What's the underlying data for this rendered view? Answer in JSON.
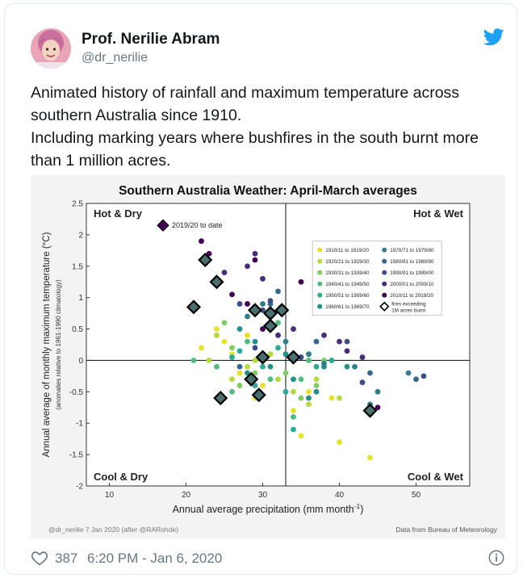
{
  "tweet": {
    "author_name": "Prof. Nerilie Abram",
    "author_handle": "@dr_nerilie",
    "text_lines": [
      "Animated history of rainfall and maximum temperature across",
      "southern Australia since 1910.",
      "Including marking years where bushfires in the south burnt more",
      "than 1 million acres."
    ],
    "like_count": "387",
    "timestamp": "6:20 PM - Jan 6, 2020",
    "icons": {
      "avatar": "avatar",
      "bird": "twitter-bird-icon",
      "heart": "heart-icon",
      "info": "info-icon"
    },
    "colors": {
      "accent": "#1da1f2",
      "secondary_text": "#657786"
    }
  },
  "chart_data": {
    "type": "scatter",
    "title": "Southern Australia Weather: April-March averages",
    "xlabel": "Annual average precipitation (mm month",
    "xlabel_sup": "-1",
    "xlabel_close": ")",
    "ylabel": "Annual average of monthly maximum temperature (°C)",
    "ylabel_sub": "(anomalies relative to 1961-1990 climatology)",
    "xlim": [
      7,
      57
    ],
    "ylim": [
      -2,
      2.5
    ],
    "x_ticks": [
      10,
      20,
      30,
      40,
      50
    ],
    "y_ticks": [
      -2,
      -1.5,
      -1,
      -0.5,
      0,
      0.5,
      1,
      1.5,
      2,
      2.5
    ],
    "y_tick_labels": [
      "-2",
      "-1.5",
      "-1",
      "-0.5",
      "0",
      "0.5",
      "1",
      "1.5",
      "2",
      "2.5"
    ],
    "divider_x": 33,
    "divider_y": 0,
    "quadrant_labels": {
      "top_left": "Hot & Dry",
      "top_right": "Hot & Wet",
      "bottom_left": "Cool & Dry",
      "bottom_right": "Cool & Wet"
    },
    "annotation": "2019/20 to date",
    "legend": {
      "placement": "top-right",
      "entries": [
        {
          "label": "1910/11 to 1919/20",
          "color": "#e6e22a"
        },
        {
          "label": "1920/21 to 1929/30",
          "color": "#b2dc3c"
        },
        {
          "label": "1930/31 to 1939/40",
          "color": "#7fce5f"
        },
        {
          "label": "1940/41 to 1949/50",
          "color": "#4ebe7e"
        },
        {
          "label": "1950/51 to 1959/60",
          "color": "#2aa996"
        },
        {
          "label": "1960/61 to 1969/70",
          "color": "#219189"
        },
        {
          "label": "1970/71 to 1979/80",
          "color": "#2d7f8e"
        },
        {
          "label": "1980/81 to 1989/90",
          "color": "#35668c"
        },
        {
          "label": "1990/91 to 1999/00",
          "color": "#3e4a89"
        },
        {
          "label": "2000/01 to 2009/10",
          "color": "#472d7b"
        },
        {
          "label": "2010/11 to 2019/20",
          "color": "#440154"
        },
        {
          "label": "fires exceeding 1M acres burnt",
          "marker": "diamond"
        }
      ]
    },
    "series": [
      {
        "decade": 0,
        "points": [
          [
            22,
            0.2
          ],
          [
            24,
            0.5
          ],
          [
            25,
            0.3
          ],
          [
            26,
            0.1
          ],
          [
            27,
            -0.2
          ],
          [
            28,
            0.4
          ],
          [
            30,
            -0.4
          ],
          [
            31,
            -0.1
          ],
          [
            34,
            -0.8
          ],
          [
            35,
            -1.2
          ],
          [
            36,
            -0.5
          ],
          [
            39,
            -0.6
          ],
          [
            40,
            -1.3
          ],
          [
            44,
            -1.55
          ],
          [
            29,
            -0.6
          ]
        ]
      },
      {
        "decade": 1,
        "points": [
          [
            23,
            0.0
          ],
          [
            24,
            0.4
          ],
          [
            26,
            -0.3
          ],
          [
            28,
            -0.1
          ],
          [
            29,
            0.0
          ],
          [
            31,
            0.1
          ],
          [
            32,
            -0.3
          ],
          [
            34,
            -0.5
          ],
          [
            36,
            -0.7
          ],
          [
            37,
            -0.3
          ],
          [
            40,
            -0.6
          ]
        ]
      },
      {
        "decade": 2,
        "points": [
          [
            25,
            0.6
          ],
          [
            26,
            0.2
          ],
          [
            27,
            -0.4
          ],
          [
            29,
            -0.2
          ],
          [
            31,
            0.5
          ],
          [
            33,
            -0.2
          ],
          [
            34,
            0.1
          ],
          [
            35,
            -0.6
          ],
          [
            37,
            -0.4
          ],
          [
            38,
            0.0
          ]
        ]
      },
      {
        "decade": 3,
        "points": [
          [
            21,
            0.0
          ],
          [
            24,
            -0.1
          ],
          [
            26,
            -0.5
          ],
          [
            28,
            0.3
          ],
          [
            30,
            0.1
          ],
          [
            31,
            -0.3
          ],
          [
            32,
            0.6
          ],
          [
            34,
            -0.9
          ],
          [
            35,
            -0.3
          ],
          [
            36,
            0.0
          ]
        ]
      },
      {
        "decade": 4,
        "points": [
          [
            26,
            0.05
          ],
          [
            27,
            0.15
          ],
          [
            29,
            -0.4
          ],
          [
            30,
            -0.1
          ],
          [
            32,
            0.2
          ],
          [
            33,
            -0.5
          ],
          [
            34,
            -1.1
          ],
          [
            35,
            0.05
          ],
          [
            37,
            -0.1
          ],
          [
            39,
            0.0
          ]
        ]
      },
      {
        "decade": 5,
        "points": [
          [
            27,
            0.5
          ],
          [
            28,
            -0.2
          ],
          [
            29,
            0.3
          ],
          [
            31,
            -0.1
          ],
          [
            33,
            0.1
          ],
          [
            34,
            -0.3
          ],
          [
            36,
            -0.6
          ],
          [
            37,
            -0.5
          ],
          [
            38,
            -0.1
          ],
          [
            41,
            -0.1
          ]
        ]
      },
      {
        "decade": 6,
        "points": [
          [
            28,
            0.7
          ],
          [
            30,
            0.9
          ],
          [
            31,
            0.6
          ],
          [
            33,
            0.3
          ],
          [
            36,
            0.1
          ],
          [
            38,
            -0.05
          ],
          [
            42,
            -0.1
          ],
          [
            44,
            -0.7
          ],
          [
            45,
            -0.5
          ],
          [
            49,
            -0.2
          ]
        ]
      },
      {
        "decade": 7,
        "points": [
          [
            27,
            -0.1
          ],
          [
            30,
            0.1
          ],
          [
            31,
            0.9
          ],
          [
            32,
            1.1
          ],
          [
            33,
            0.8
          ],
          [
            37,
            0.3
          ],
          [
            44,
            -0.2
          ],
          [
            50,
            -0.3
          ]
        ]
      },
      {
        "decade": 8,
        "points": [
          [
            27,
            0.9
          ],
          [
            29,
            0.2
          ],
          [
            30,
            0.8
          ],
          [
            31,
            0.95
          ],
          [
            35,
            0.05
          ],
          [
            41,
            0.3
          ],
          [
            43,
            -0.35
          ],
          [
            51,
            -0.25
          ]
        ]
      },
      {
        "decade": 9,
        "points": [
          [
            25,
            1.4
          ],
          [
            28,
            1.5
          ],
          [
            29,
            1.7
          ],
          [
            30,
            1.3
          ],
          [
            32,
            0.4
          ],
          [
            34,
            0.5
          ],
          [
            38,
            0.4
          ],
          [
            40,
            0.3
          ],
          [
            41,
            0.15
          ],
          [
            43,
            0.05
          ]
        ]
      },
      {
        "decade": 10,
        "points": [
          [
            22,
            1.9
          ],
          [
            23,
            1.7
          ],
          [
            26,
            1.05
          ],
          [
            28,
            0.9
          ],
          [
            29,
            1.6
          ],
          [
            30,
            0.5
          ],
          [
            35,
            1.25
          ],
          [
            43,
            0.8
          ],
          [
            45,
            -0.75
          ]
        ]
      }
    ],
    "fire_years": [
      [
        17,
        2.15
      ],
      [
        21,
        0.85
      ],
      [
        22.5,
        1.6
      ],
      [
        24,
        1.25
      ],
      [
        24.5,
        -0.6
      ],
      [
        28.5,
        -0.3
      ],
      [
        29,
        0.8
      ],
      [
        29.5,
        -0.55
      ],
      [
        30,
        0.05
      ],
      [
        31,
        0.75
      ],
      [
        31,
        0.55
      ],
      [
        32.5,
        0.8
      ],
      [
        34,
        0.05
      ],
      [
        44,
        -0.8
      ]
    ],
    "footer_left": "@dr_nerilie 7 Jan 2020 (after @RARohde)",
    "footer_right": "Data from Bureau of Meteorology"
  }
}
